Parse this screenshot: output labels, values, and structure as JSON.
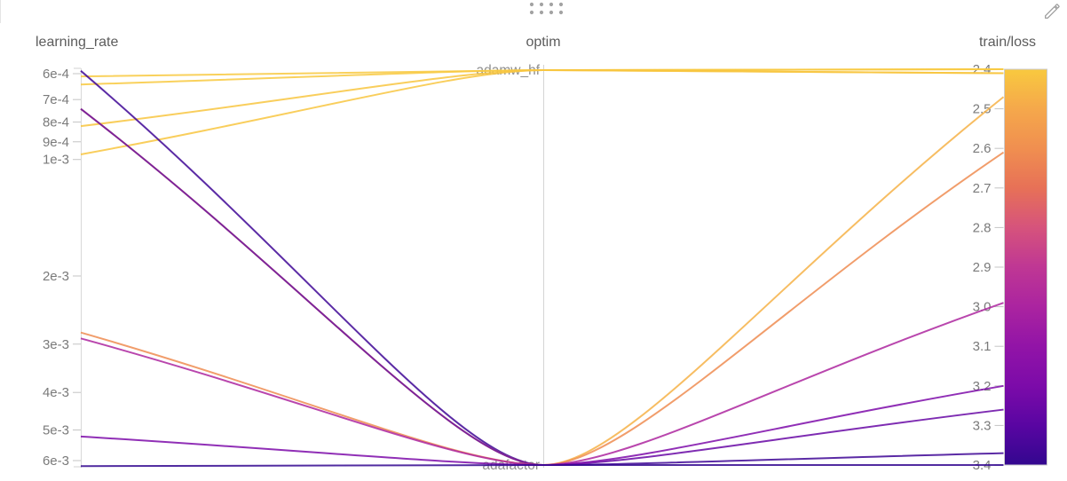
{
  "panel": {
    "drag_handle_icon": "grip-dots-icon",
    "edit_icon": "pencil-icon"
  },
  "chart_data": {
    "type": "parallel-coordinates",
    "axes": [
      {
        "key": "learning_rate",
        "title": "learning_rate",
        "scale": "log",
        "tick_labels": [
          "6e-4",
          "7e-4",
          "8e-4",
          "9e-4",
          "1e-3",
          "2e-3",
          "3e-3",
          "4e-3",
          "5e-3",
          "6e-3"
        ],
        "tick_values": [
          0.0006,
          0.0007,
          0.0008,
          0.0009,
          0.001,
          0.002,
          0.003,
          0.004,
          0.005,
          0.006
        ],
        "range": [
          0.00059,
          0.0063
        ]
      },
      {
        "key": "optim",
        "title": "optim",
        "scale": "categorical",
        "categories": [
          "adamw_hf",
          "adafactor"
        ]
      },
      {
        "key": "train/loss",
        "title": "train/loss",
        "scale": "linear",
        "tick_labels": [
          "2.4",
          "2.5",
          "2.6",
          "2.7",
          "2.8",
          "2.9",
          "3.0",
          "3.1",
          "3.2",
          "3.3",
          "3.4"
        ],
        "tick_values": [
          2.4,
          2.5,
          2.6,
          2.7,
          2.8,
          2.9,
          3.0,
          3.1,
          3.2,
          3.3,
          3.4
        ],
        "range": [
          2.4,
          3.4
        ],
        "colorbar": true
      }
    ],
    "color_scale": {
      "metric": "train/loss",
      "low_value_color": "#F8C93F",
      "high_value_color": "#33078F",
      "stops": [
        [
          2.4,
          "#F8C93F"
        ],
        [
          2.5,
          "#F5A84B"
        ],
        [
          2.6,
          "#F08F50"
        ],
        [
          2.7,
          "#E77157"
        ],
        [
          2.8,
          "#D6537C"
        ],
        [
          2.9,
          "#BF3794"
        ],
        [
          3.0,
          "#AB24A0"
        ],
        [
          3.1,
          "#9214A7"
        ],
        [
          3.2,
          "#7C0BA9"
        ],
        [
          3.3,
          "#5905A2"
        ],
        [
          3.4,
          "#33078F"
        ]
      ]
    },
    "runs": [
      {
        "learning_rate": 0.00061,
        "optim": "adamw_hf",
        "train/loss": 2.4
      },
      {
        "learning_rate": 0.00064,
        "optim": "adamw_hf",
        "train/loss": 2.4
      },
      {
        "learning_rate": 0.00082,
        "optim": "adamw_hf",
        "train/loss": 2.41
      },
      {
        "learning_rate": 0.00097,
        "optim": "adamw_hf",
        "train/loss": 2.41
      },
      {
        "learning_rate": 0.00059,
        "optim": "adafactor",
        "train/loss": 3.37
      },
      {
        "learning_rate": 0.00074,
        "optim": "adafactor",
        "train/loss": 2.47
      },
      {
        "learning_rate": 0.00074,
        "optim": "adafactor",
        "train/loss": 3.26
      },
      {
        "learning_rate": 0.0028,
        "optim": "adafactor",
        "train/loss": 2.61
      },
      {
        "learning_rate": 0.0029,
        "optim": "adafactor",
        "train/loss": 2.99
      },
      {
        "learning_rate": 0.0052,
        "optim": "adafactor",
        "train/loss": 3.2
      },
      {
        "learning_rate": 0.0062,
        "optim": "adafactor",
        "train/loss": 3.4
      }
    ]
  }
}
